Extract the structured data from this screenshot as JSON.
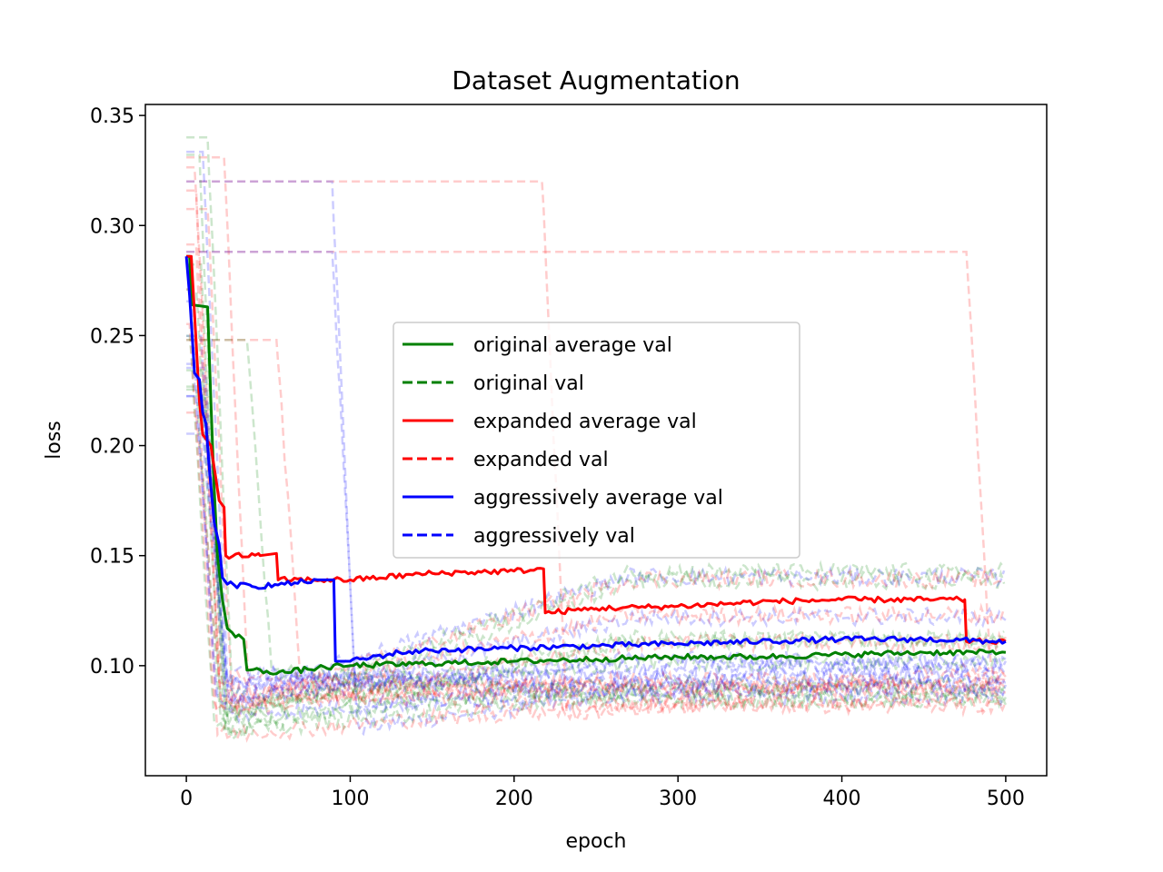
{
  "chart_data": {
    "type": "line",
    "title": "Dataset Augmentation",
    "xlabel": "epoch",
    "ylabel": "loss",
    "xlim": [
      -25,
      525
    ],
    "ylim": [
      0.05,
      0.355
    ],
    "xticks": [
      0,
      100,
      200,
      300,
      400,
      500
    ],
    "xtick_labels": [
      "0",
      "100",
      "200",
      "300",
      "400",
      "500"
    ],
    "yticks": [
      0.1,
      0.15,
      0.2,
      0.25,
      0.3,
      0.35
    ],
    "ytick_labels": [
      "0.10",
      "0.15",
      "0.20",
      "0.25",
      "0.30",
      "0.35"
    ],
    "grid": false,
    "legend_position": "center",
    "legend": [
      {
        "label": "original average val",
        "color": "#008000",
        "style": "solid"
      },
      {
        "label": "original val",
        "color": "#008000",
        "style": "dashed"
      },
      {
        "label": "expanded average val",
        "color": "#ff0000",
        "style": "solid"
      },
      {
        "label": "expanded val",
        "color": "#ff0000",
        "style": "dashed"
      },
      {
        "label": "aggressively average val",
        "color": "#0000ff",
        "style": "solid"
      },
      {
        "label": "aggressively val",
        "color": "#0000ff",
        "style": "dashed"
      }
    ],
    "series": [
      {
        "name": "original average val",
        "color": "#008000",
        "style": "solid",
        "points": [
          [
            0,
            0.286
          ],
          [
            2,
            0.286
          ],
          [
            3,
            0.264
          ],
          [
            13,
            0.263
          ],
          [
            15,
            0.22
          ],
          [
            17,
            0.18
          ],
          [
            19,
            0.15
          ],
          [
            22,
            0.13
          ],
          [
            25,
            0.117
          ],
          [
            28,
            0.115
          ],
          [
            30,
            0.113
          ],
          [
            32,
            0.114
          ],
          [
            35,
            0.112
          ],
          [
            37,
            0.098
          ],
          [
            60,
            0.097
          ],
          [
            80,
            0.099
          ],
          [
            100,
            0.1
          ],
          [
            150,
            0.101
          ],
          [
            200,
            0.102
          ],
          [
            250,
            0.103
          ],
          [
            300,
            0.104
          ],
          [
            350,
            0.104
          ],
          [
            400,
            0.105
          ],
          [
            450,
            0.106
          ],
          [
            500,
            0.106
          ]
        ]
      },
      {
        "name": "expanded average val",
        "color": "#ff0000",
        "style": "solid",
        "points": [
          [
            0,
            0.286
          ],
          [
            3,
            0.286
          ],
          [
            5,
            0.26
          ],
          [
            8,
            0.22
          ],
          [
            10,
            0.205
          ],
          [
            15,
            0.2
          ],
          [
            18,
            0.185
          ],
          [
            20,
            0.175
          ],
          [
            23,
            0.172
          ],
          [
            24,
            0.15
          ],
          [
            45,
            0.15
          ],
          [
            55,
            0.151
          ],
          [
            56,
            0.139
          ],
          [
            100,
            0.139
          ],
          [
            150,
            0.142
          ],
          [
            200,
            0.143
          ],
          [
            218,
            0.144
          ],
          [
            219,
            0.124
          ],
          [
            250,
            0.126
          ],
          [
            300,
            0.127
          ],
          [
            350,
            0.129
          ],
          [
            400,
            0.13
          ],
          [
            450,
            0.13
          ],
          [
            475,
            0.13
          ],
          [
            476,
            0.111
          ],
          [
            500,
            0.111
          ]
        ]
      },
      {
        "name": "aggressively average val",
        "color": "#0000ff",
        "style": "solid",
        "points": [
          [
            0,
            0.286
          ],
          [
            2,
            0.268
          ],
          [
            5,
            0.233
          ],
          [
            8,
            0.23
          ],
          [
            10,
            0.215
          ],
          [
            12,
            0.21
          ],
          [
            14,
            0.19
          ],
          [
            17,
            0.165
          ],
          [
            20,
            0.155
          ],
          [
            22,
            0.14
          ],
          [
            25,
            0.137
          ],
          [
            40,
            0.136
          ],
          [
            60,
            0.137
          ],
          [
            80,
            0.139
          ],
          [
            90,
            0.139
          ],
          [
            91,
            0.102
          ],
          [
            100,
            0.102
          ],
          [
            130,
            0.106
          ],
          [
            150,
            0.107
          ],
          [
            200,
            0.108
          ],
          [
            250,
            0.109
          ],
          [
            300,
            0.11
          ],
          [
            350,
            0.111
          ],
          [
            400,
            0.112
          ],
          [
            450,
            0.112
          ],
          [
            500,
            0.111
          ]
        ]
      }
    ],
    "background_series_count": 30
  }
}
